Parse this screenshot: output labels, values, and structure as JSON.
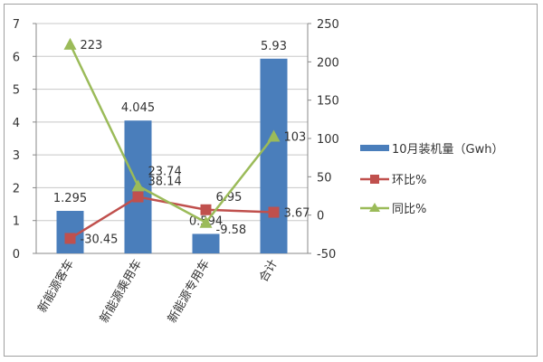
{
  "chart_data": {
    "type": "bar+line",
    "categories": [
      "新能源客车",
      "新能源乘用车",
      "新能源专用车",
      "合计"
    ],
    "series": [
      {
        "name": "10月装机量（Gwh）",
        "type": "bar",
        "axis": "left",
        "values": [
          1.295,
          4.045,
          0.594,
          5.93
        ],
        "labels": [
          "1.295",
          "4.045",
          "0.594",
          "5.93"
        ],
        "color": "#4a7ebb"
      },
      {
        "name": "环比%",
        "type": "line",
        "axis": "right",
        "values": [
          -30.45,
          23.74,
          6.95,
          3.67
        ],
        "labels": [
          "-30.45",
          "23.74",
          "6.95",
          "3.67"
        ],
        "color": "#c0504d",
        "marker": "square"
      },
      {
        "name": "同比%",
        "type": "line",
        "axis": "right",
        "values": [
          223,
          38.14,
          -9.58,
          103
        ],
        "labels": [
          "223",
          "38.14",
          "-9.58",
          "103"
        ],
        "color": "#9bbb59",
        "marker": "triangle"
      }
    ],
    "left_axis": {
      "ylim": [
        0,
        7
      ],
      "ticks": [
        "0",
        "1",
        "2",
        "3",
        "4",
        "5",
        "6",
        "7"
      ]
    },
    "right_axis": {
      "ylim": [
        -50,
        250
      ],
      "ticks": [
        "-50",
        "0",
        "50",
        "100",
        "150",
        "200",
        "250"
      ]
    },
    "grid": true,
    "legend": "right"
  }
}
